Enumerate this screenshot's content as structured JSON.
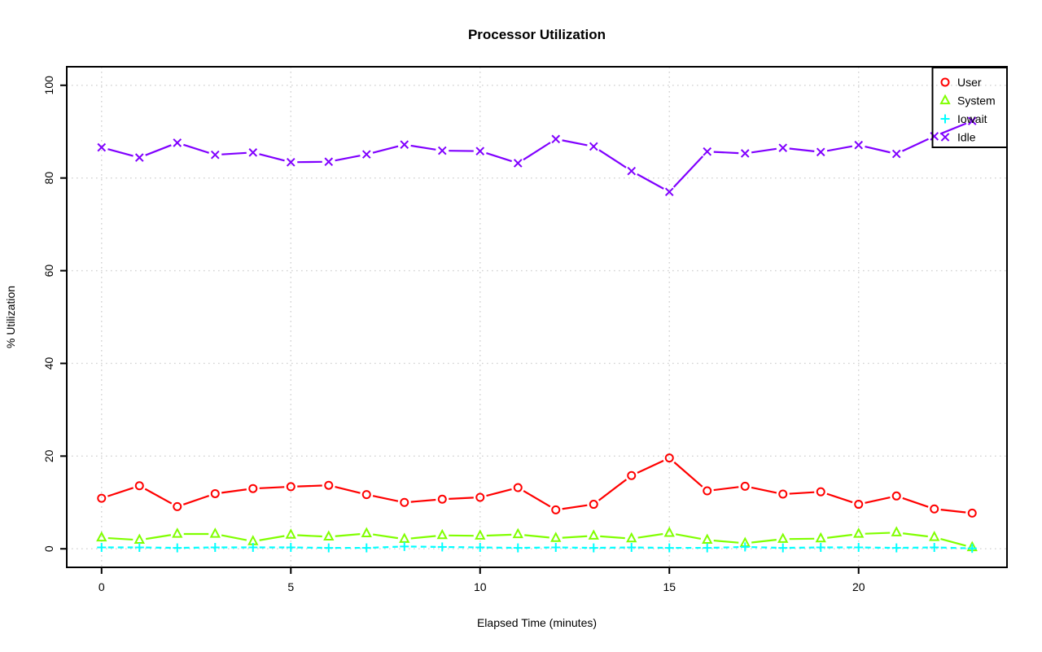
{
  "chart_data": {
    "type": "line",
    "title": "Processor Utilization",
    "xlabel": "Elapsed Time (minutes)",
    "ylabel": "% Utilization",
    "xlim": [
      0,
      23
    ],
    "ylim": [
      0,
      100
    ],
    "x_ticks": [
      0,
      5,
      10,
      15,
      20
    ],
    "y_ticks": [
      0,
      20,
      40,
      60,
      80,
      100
    ],
    "grid": true,
    "grid_color": "#d2d2d2",
    "frame_color": "#000000",
    "legend_position": "topright",
    "x": [
      0,
      1,
      2,
      3,
      4,
      5,
      6,
      7,
      8,
      9,
      10,
      11,
      12,
      13,
      14,
      15,
      16,
      17,
      18,
      19,
      20,
      21,
      22,
      23
    ],
    "series": [
      {
        "name": "User",
        "color": "#ff0000",
        "marker": "circle",
        "line": "solid",
        "values": [
          10.9,
          13.6,
          9.1,
          11.9,
          13.0,
          13.4,
          13.7,
          11.7,
          10.0,
          10.7,
          11.1,
          13.2,
          8.4,
          9.6,
          15.8,
          19.6,
          12.5,
          13.5,
          11.8,
          12.3,
          9.6,
          11.4,
          8.6,
          7.7
        ]
      },
      {
        "name": "System",
        "color": "#80ff00",
        "marker": "triangle",
        "line": "solid",
        "values": [
          2.4,
          1.9,
          3.2,
          3.2,
          1.6,
          3.0,
          2.6,
          3.3,
          2.1,
          2.9,
          2.8,
          3.1,
          2.3,
          2.8,
          2.2,
          3.4,
          1.9,
          1.2,
          2.1,
          2.2,
          3.2,
          3.5,
          2.5,
          0.3
        ]
      },
      {
        "name": "Iowait",
        "color": "#00ffff",
        "marker": "plus",
        "line": "dashed",
        "values": [
          0.3,
          0.3,
          0.2,
          0.3,
          0.3,
          0.3,
          0.2,
          0.2,
          0.5,
          0.4,
          0.3,
          0.2,
          0.3,
          0.2,
          0.3,
          0.2,
          0.2,
          0.4,
          0.2,
          0.3,
          0.3,
          0.2,
          0.3,
          0.1
        ]
      },
      {
        "name": "Idle",
        "color": "#8000ff",
        "marker": "x",
        "line": "solid",
        "values": [
          86.6,
          84.4,
          87.6,
          85.0,
          85.5,
          83.4,
          83.5,
          85.1,
          87.2,
          85.9,
          85.8,
          83.2,
          88.4,
          86.8,
          81.5,
          77.0,
          85.7,
          85.3,
          86.5,
          85.6,
          87.1,
          85.2,
          89.0,
          92.3
        ]
      }
    ]
  }
}
